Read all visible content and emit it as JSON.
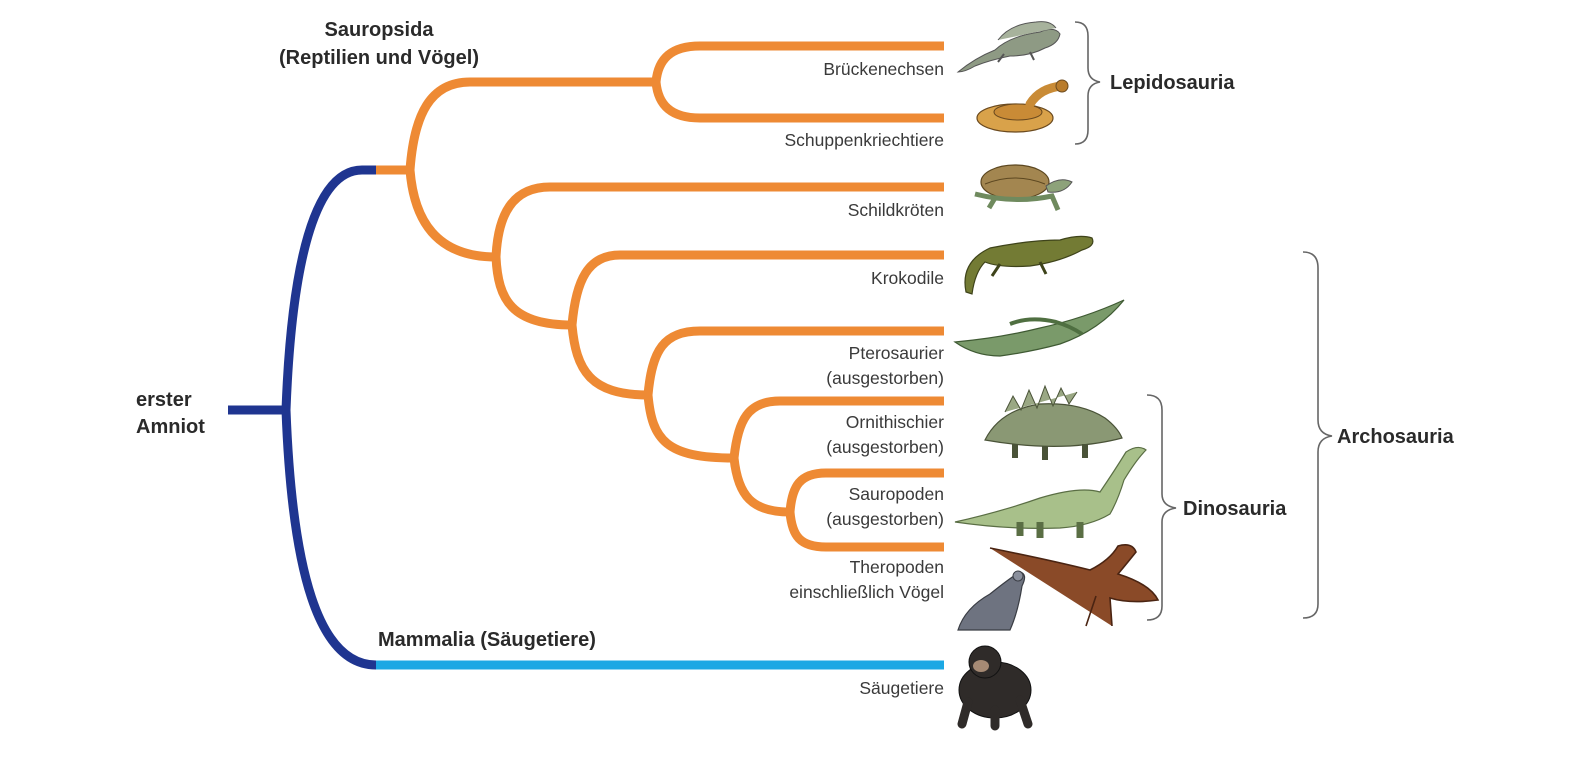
{
  "root_label": [
    "erster",
    "Amniot"
  ],
  "sauropsida_label": [
    "Sauropsida",
    "(Reptilien und Vögel)"
  ],
  "mammalia_label": "Mammalia (Säugetiere)",
  "leaves": {
    "brueckenechsen": [
      "Brückenechsen"
    ],
    "schuppenkriechtiere": [
      "Schuppenkriechtiere"
    ],
    "schildkroeten": [
      "Schildkröten"
    ],
    "krokodile": [
      "Krokodile"
    ],
    "pterosaurier": [
      "Pterosaurier",
      "(ausgestorben)"
    ],
    "ornithischier": [
      "Ornithischier",
      "(ausgestorben)"
    ],
    "sauropoden": [
      "Sauropoden",
      "(ausgestorben)"
    ],
    "theropoden": [
      "Theropoden",
      "einschließlich Vögel"
    ],
    "saeugetiere": [
      "Säugetiere"
    ]
  },
  "groups": {
    "lepidosauria": "Lepidosauria",
    "archosauria": "Archosauria",
    "dinosauria": "Dinosauria"
  },
  "icons": {
    "brueckenechsen": "tuatara-icon",
    "schuppenkriechtiere": "snake-icon",
    "schildkroeten": "turtle-icon",
    "krokodile": "crocodile-icon",
    "pterosaurier": "pterosaur-icon",
    "ornithischier": "stegosaurus-icon",
    "sauropoden": "sauropod-icon",
    "theropoden": "pigeon-and-theropod-icon",
    "saeugetiere": "chimpanzee-icon"
  },
  "colors": {
    "sauropsida_branch": "#ee8a34",
    "amniote_branch": "#1f3590",
    "mammalia_branch": "#1ca8e4"
  }
}
